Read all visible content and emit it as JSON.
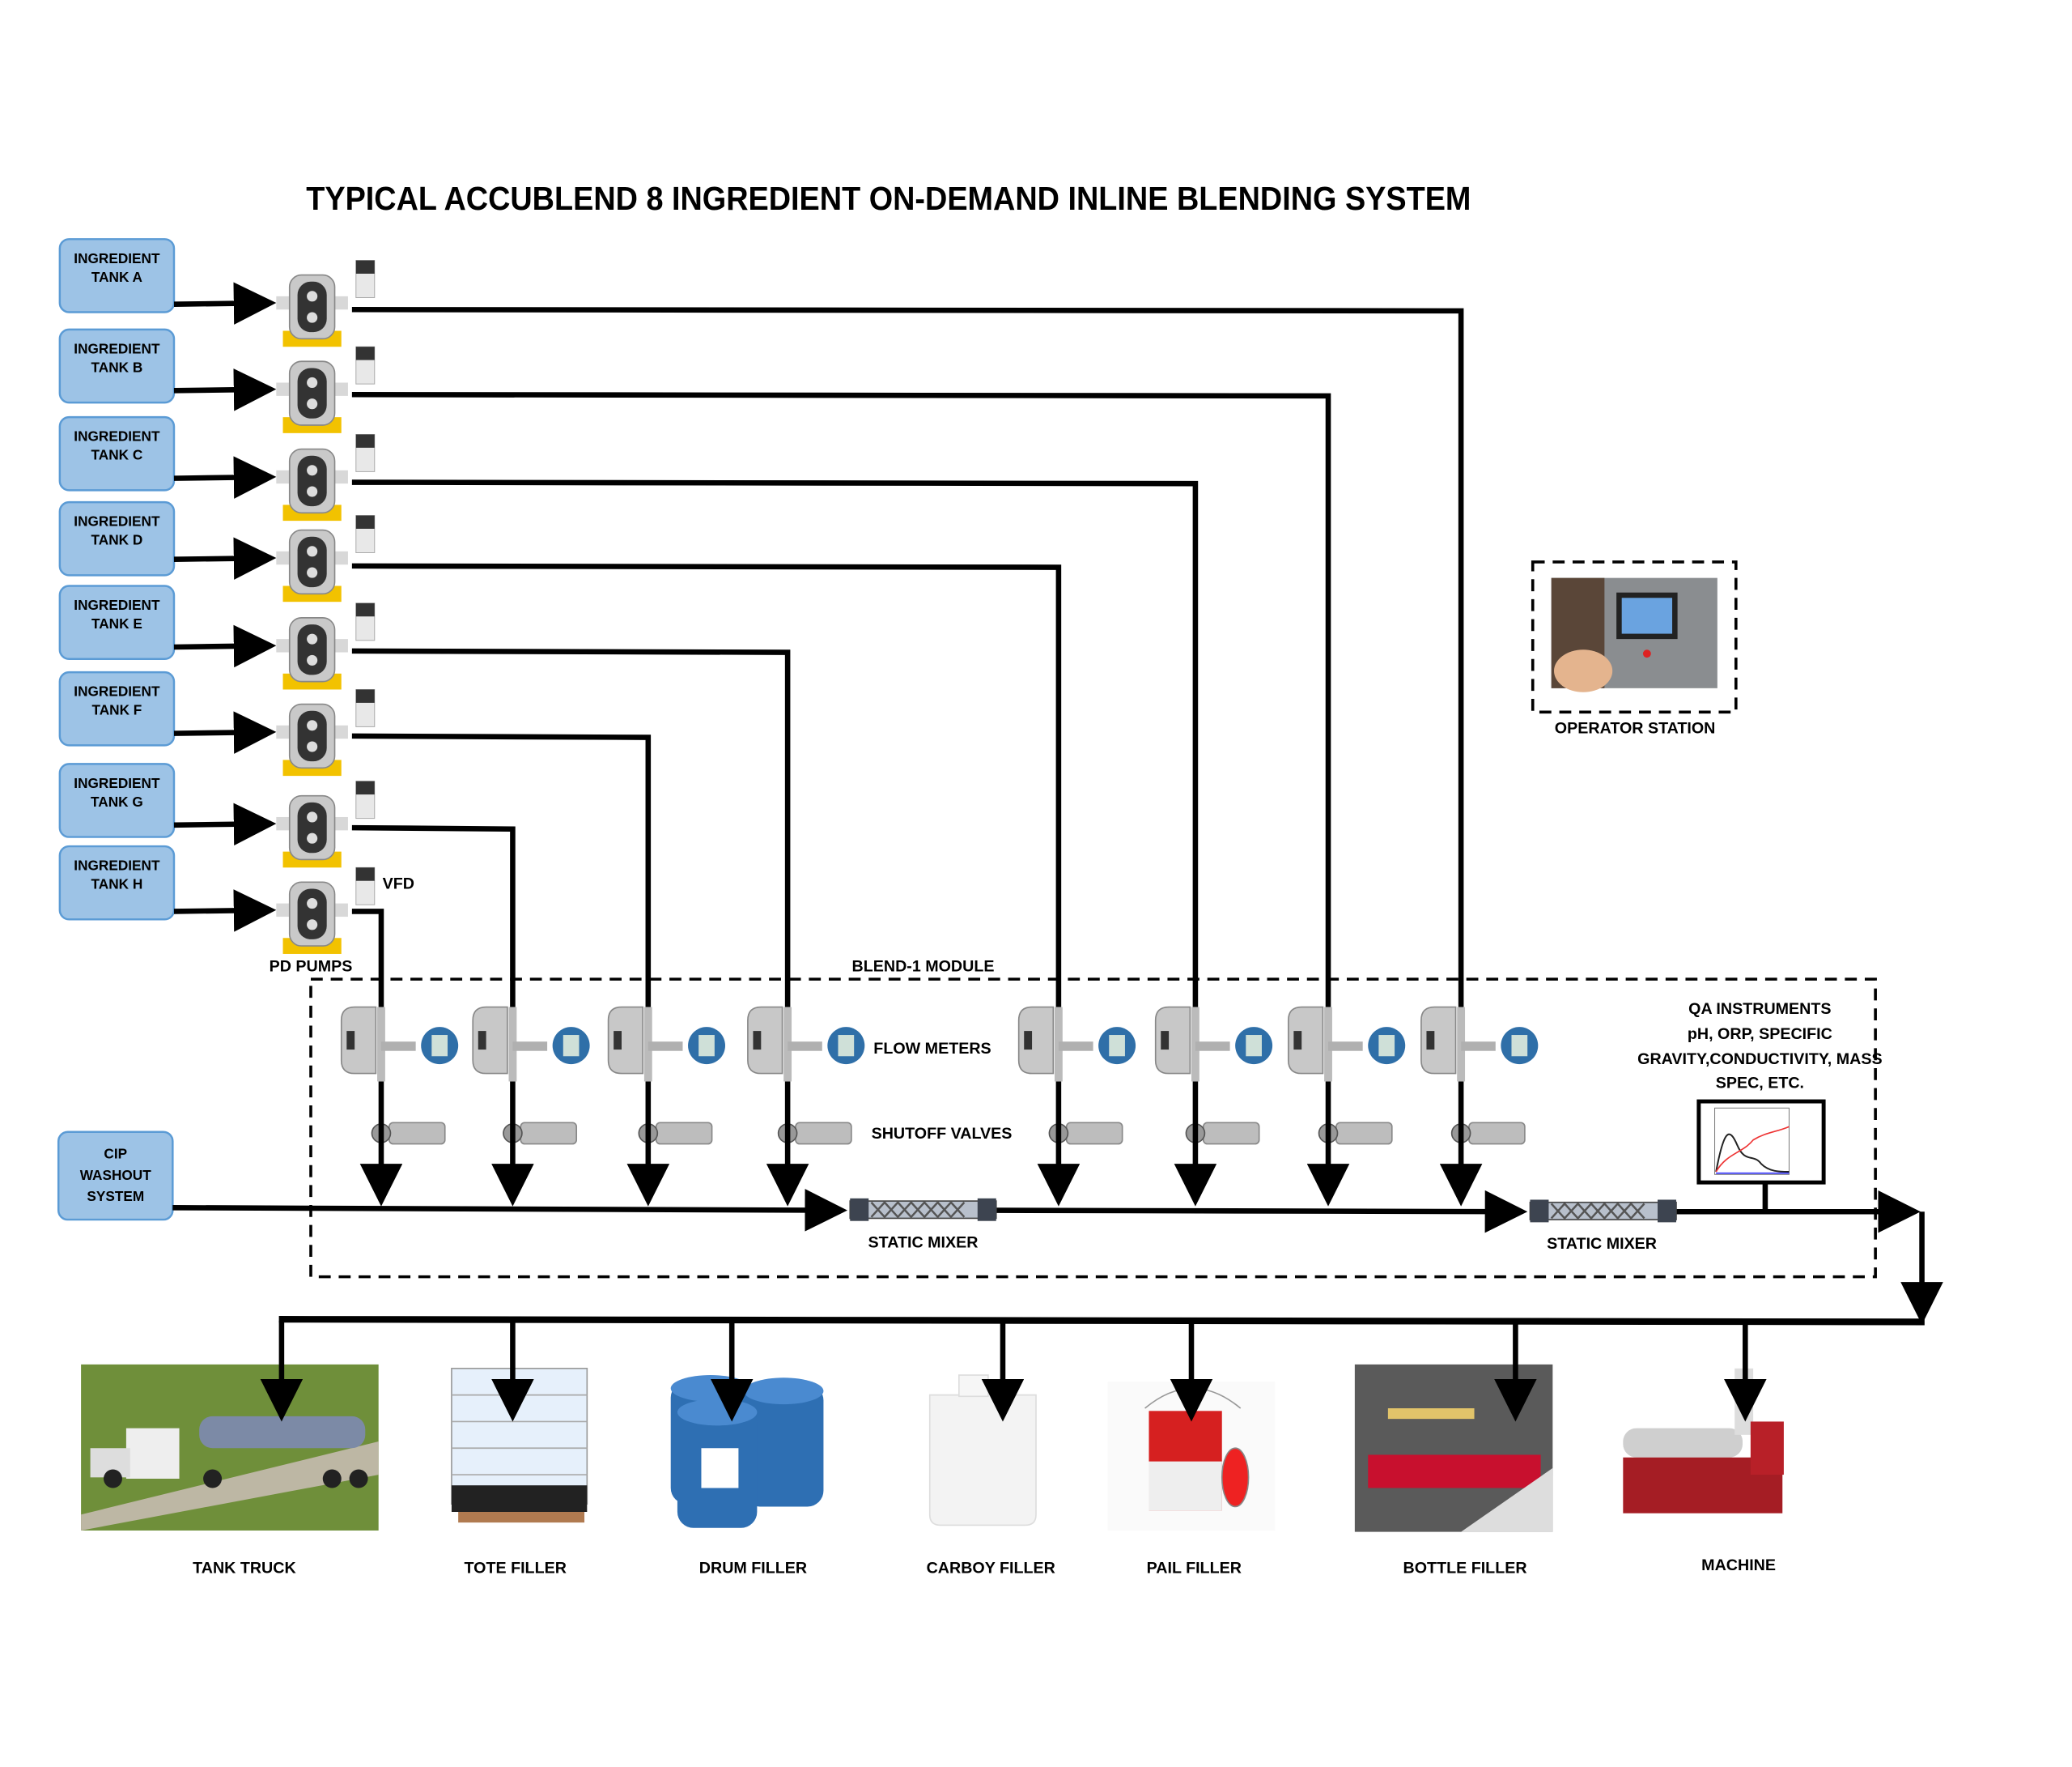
{
  "title": "TYPICAL ACCUBLEND 8 INGREDIENT ON-DEMAND INLINE BLENDING SYSTEM",
  "tanks": [
    {
      "line1": "INGREDIENT",
      "line2": "TANK A"
    },
    {
      "line1": "INGREDIENT",
      "line2": "TANK B"
    },
    {
      "line1": "INGREDIENT",
      "line2": "TANK C"
    },
    {
      "line1": "INGREDIENT",
      "line2": "TANK D"
    },
    {
      "line1": "INGREDIENT",
      "line2": "TANK E"
    },
    {
      "line1": "INGREDIENT",
      "line2": "TANK F"
    },
    {
      "line1": "INGREDIENT",
      "line2": "TANK G"
    },
    {
      "line1": "INGREDIENT",
      "line2": "TANK H"
    }
  ],
  "labels": {
    "vfd": "VFD",
    "pd_pumps": "PD PUMPS",
    "blend_module": "BLEND-1 MODULE",
    "flow_meters": "FLOW METERS",
    "shutoff_valves": "SHUTOFF VALVES",
    "static_mixer_1": "STATIC MIXER",
    "static_mixer_2": "STATIC MIXER",
    "operator_station": "OPERATOR STATION",
    "qa": [
      "QA INSTRUMENTS",
      "pH, ORP, SPECIFIC",
      "GRAVITY,CONDUCTIVITY, MASS",
      "SPEC, ETC."
    ]
  },
  "cip": {
    "lines": [
      "CIP",
      "WASHOUT",
      "SYSTEM"
    ]
  },
  "destinations": [
    {
      "label": "TANK TRUCK",
      "icon": "tank-truck"
    },
    {
      "label": "TOTE FILLER",
      "icon": "tote"
    },
    {
      "label": "DRUM FILLER",
      "icon": "drums"
    },
    {
      "label": "CARBOY FILLER",
      "icon": "carboy"
    },
    {
      "label": "PAIL FILLER",
      "icon": "paint-pail"
    },
    {
      "label": "BOTTLE FILLER",
      "icon": "bottle-filler"
    },
    {
      "label": "MACHINE",
      "icon": "extruder-machine"
    }
  ],
  "colors": {
    "tank_fill": "#9dc3e6",
    "tank_border": "#5b9bd5",
    "pump_base": "#f2c200",
    "meter_blue": "#2f6fa8"
  }
}
